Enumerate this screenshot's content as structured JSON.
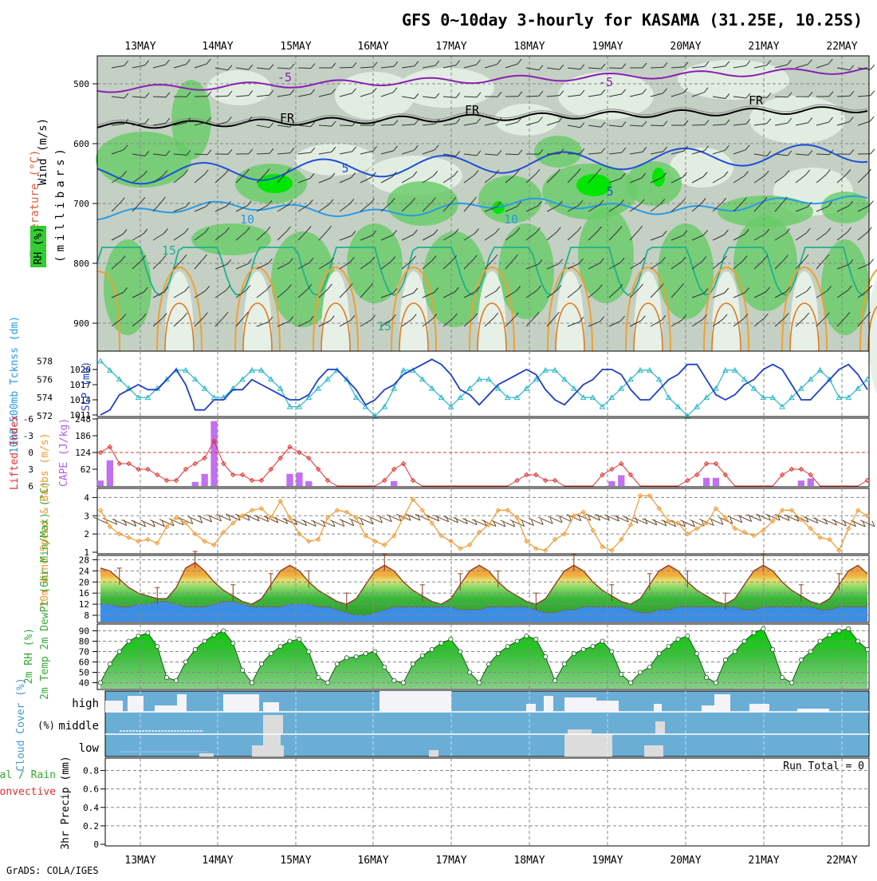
{
  "header": {
    "title": "GFS 0~10day 3-hourly for KASAMA (31.25E, 10.25S)",
    "footer": "GrADS: COLA/IGES"
  },
  "colors": {
    "rh_light": "#e6f0e6",
    "rh_mid": "#bdcbbd",
    "rh_gray": "#a9b7a9",
    "rh_green": "#66cc66",
    "rh_bright": "#00e600",
    "temp_purple": "#8a1fb5",
    "temp_black": "#000000",
    "temp_blue": "#1f4fd8",
    "temp_lightblue": "#2a9ae6",
    "temp_teal": "#1fb08a",
    "temp_orange": "#f0a030",
    "slp": "#1f3fc8",
    "thickness": "#2ab8c8",
    "li_line": "#e03030",
    "cape_bar": "#c070f0",
    "wind_line": "#f09a30",
    "barb": "#6a4a2a",
    "temp_fill": "#33aa33",
    "dew_fill": "#3388e6",
    "rh_fill": "#33bb33",
    "cloud_blue": "#6aaed6",
    "cloud_white": "#f4f4f8",
    "cloud_gray": "#dcdcdc",
    "grid": "#999999"
  },
  "dates": [
    "13MAY",
    "14MAY",
    "15MAY",
    "16MAY",
    "17MAY",
    "18MAY",
    "19MAY",
    "20MAY",
    "21MAY",
    "22MAY"
  ],
  "panels": {
    "upper": {
      "ylabel_wind": "Wind (m/s)",
      "ylabel_temp": "Temperature (°C)",
      "ylabel_rh": "RH (%)",
      "ylabel_mb": "(millibars)",
      "levels": [
        "500",
        "600",
        "700",
        "800",
        "900"
      ],
      "contour_labels": {
        "m5": "-5",
        "fr": "FR",
        "p5": "5",
        "p10": "10",
        "p15": "15"
      }
    },
    "slp": {
      "ylabel_thick": "1000-500mb Tcknss (dm)",
      "ylabel_slp": "SLP (mb)",
      "thick_ticks": [
        "578",
        "576",
        "574",
        "572"
      ],
      "slp_ticks": [
        "1020",
        "1017",
        "1014",
        "1011"
      ]
    },
    "cape": {
      "ylabel_li": "Lifted Index",
      "ylabel_cape": "CAPE (J/kg)",
      "li_ticks": [
        "-6",
        "-3",
        "0",
        "3",
        "6"
      ],
      "cape_ticks": [
        "248",
        "186",
        "124",
        "62"
      ]
    },
    "wind": {
      "ylabel": "10m Wind Speed & Barbs (m/s)",
      "ticks": [
        "4",
        "3",
        "2",
        "1"
      ]
    },
    "temp": {
      "ylabel": "2m Temp 2m DewPt (6hr Min/Max) (°C)",
      "ticks": [
        "28",
        "24",
        "20",
        "16",
        "12",
        "8"
      ]
    },
    "rh": {
      "ylabel": "2m RH (%)",
      "ticks": [
        "90",
        "80",
        "70",
        "60",
        "50",
        "40"
      ]
    },
    "cloud": {
      "ylabel": "Cloud Cover (%)",
      "rows": [
        "high",
        "middle",
        "low"
      ]
    },
    "precip": {
      "ylabel_total": "tal / Rain",
      "ylabel_conv": "Convective",
      "ylabel_precip": "3hr Precip (mm)",
      "run_total": "Run Total = 0",
      "ticks": [
        "0.8",
        "0.6",
        "0.4",
        "0.2",
        "0"
      ]
    }
  },
  "chart_data": [
    {
      "type": "line",
      "name": "SLP and 1000-500mb thickness",
      "time_index_unit": "3-hourly steps from 12 May 12Z",
      "series": [
        {
          "name": "SLP (mb)",
          "values": [
            1011,
            1012,
            1015,
            1016,
            1017,
            1016,
            1016,
            1018,
            1020,
            1017,
            1012,
            1012,
            1014,
            1014,
            1016,
            1016,
            1018,
            1017,
            1016,
            1015,
            1014,
            1014,
            1015,
            1018,
            1020,
            1020,
            1018,
            1016,
            1013,
            1014,
            1016,
            1017,
            1019,
            1020,
            1021,
            1022,
            1021,
            1019,
            1016,
            1015,
            1013,
            1015,
            1017,
            1018,
            1019,
            1020,
            1019,
            1016,
            1014,
            1013,
            1015,
            1017,
            1018,
            1020,
            1020,
            1019,
            1016,
            1014,
            1014,
            1016,
            1018,
            1019,
            1021,
            1021,
            1018,
            1015,
            1014,
            1015,
            1017,
            1018,
            1020,
            1021,
            1020,
            1017,
            1014,
            1014,
            1016,
            1018,
            1020,
            1021,
            1019,
            1016
          ]
        },
        {
          "name": "Thickness (dm)",
          "values": [
            578,
            577,
            576,
            575,
            574,
            574,
            575,
            576,
            577,
            577,
            576,
            575,
            574,
            574,
            575,
            576,
            577,
            577,
            576,
            575,
            573,
            573,
            574,
            575,
            576,
            577,
            576,
            574,
            573,
            572,
            573,
            575,
            577,
            577,
            576,
            575,
            574,
            573,
            574,
            575,
            576,
            576,
            575,
            574,
            574,
            575,
            576,
            577,
            577,
            576,
            575,
            574,
            574,
            573,
            574,
            575,
            576,
            577,
            577,
            576,
            574,
            573,
            572,
            573,
            574,
            575,
            577,
            577,
            576,
            575,
            574,
            574,
            573,
            574,
            575,
            576,
            577,
            576,
            574,
            574,
            575,
            576
          ]
        }
      ],
      "ylim_slp": [
        1011,
        1023
      ],
      "ylim_thick": [
        572,
        579
      ]
    },
    {
      "type": "bar",
      "name": "CAPE and Lifted Index",
      "series": [
        {
          "name": "CAPE (J/kg)",
          "values": [
            20,
            95,
            0,
            0,
            0,
            0,
            0,
            0,
            0,
            0,
            15,
            45,
            240,
            0,
            0,
            0,
            0,
            0,
            0,
            0,
            45,
            50,
            18,
            0,
            0,
            0,
            0,
            0,
            0,
            0,
            0,
            18,
            0,
            0,
            0,
            0,
            0,
            0,
            0,
            0,
            0,
            0,
            0,
            0,
            0,
            0,
            0,
            0,
            0,
            0,
            0,
            0,
            0,
            0,
            18,
            40,
            0,
            0,
            0,
            0,
            0,
            0,
            0,
            0,
            30,
            30,
            0,
            0,
            0,
            0,
            0,
            0,
            0,
            0,
            20,
            28,
            0,
            0,
            0,
            0,
            0,
            0
          ]
        },
        {
          "name": "Lifted Index",
          "values": [
            0,
            -1,
            2,
            2,
            3,
            3,
            4,
            5,
            5,
            3,
            2,
            1,
            -2,
            2,
            4,
            4,
            5,
            5,
            3,
            1,
            -1,
            0,
            1,
            3,
            5,
            6,
            6,
            6,
            6,
            6,
            5,
            3,
            2,
            5,
            6,
            6,
            6,
            6,
            6,
            6,
            6,
            6,
            6,
            6,
            5,
            4,
            4,
            5,
            5,
            6,
            6,
            6,
            6,
            4,
            3,
            2,
            4,
            6,
            6,
            6,
            6,
            6,
            5,
            4,
            2,
            2,
            4,
            6,
            6,
            6,
            6,
            6,
            4,
            3,
            3,
            4,
            6,
            6,
            6,
            6,
            6,
            5
          ]
        }
      ],
      "ylim_cape": [
        0,
        248
      ],
      "ylim_li": [
        -6,
        6
      ]
    },
    {
      "type": "line",
      "name": "10m wind speed",
      "series": [
        {
          "name": "Wind speed (m/s)",
          "values": [
            3.3,
            2.4,
            2.0,
            1.8,
            1.6,
            1.7,
            1.5,
            2.4,
            2.9,
            2.6,
            2.0,
            1.6,
            1.4,
            2.1,
            2.6,
            3.0,
            3.3,
            3.4,
            2.9,
            3.8,
            2.9,
            2.0,
            1.6,
            1.7,
            2.9,
            3.3,
            3.2,
            2.9,
            1.9,
            1.6,
            1.4,
            1.9,
            2.9,
            3.9,
            3.3,
            2.6,
            1.9,
            1.6,
            1.2,
            1.4,
            2.1,
            2.5,
            3.3,
            3.3,
            2.9,
            1.6,
            1.2,
            1.1,
            1.7,
            2.0,
            3.0,
            3.2,
            2.2,
            1.3,
            1.1,
            1.7,
            2.5,
            4.1,
            4.1,
            3.4,
            2.7,
            2.6,
            2.0,
            2.3,
            2.6,
            3.4,
            2.9,
            2.3,
            2.1,
            1.9,
            2.2,
            2.7,
            3.3,
            3.3,
            2.8,
            2.3,
            1.8,
            1.7,
            1.1,
            2.3,
            3.3,
            3.0
          ]
        }
      ],
      "ylim": [
        1,
        4.5
      ]
    },
    {
      "type": "area",
      "name": "2m temperature and dewpoint",
      "series": [
        {
          "name": "2m Temp (°C)",
          "values": [
            25,
            24,
            21,
            18,
            16,
            15,
            14,
            14,
            18,
            25,
            27,
            24,
            20,
            17,
            15,
            13,
            12,
            14,
            19,
            24,
            26,
            24,
            20,
            17,
            15,
            13,
            12,
            14,
            19,
            24,
            26,
            24,
            20,
            17,
            15,
            13,
            12,
            14,
            19,
            24,
            26,
            24,
            20,
            17,
            15,
            13,
            12,
            14,
            19,
            24,
            26,
            24,
            20,
            17,
            15,
            13,
            12,
            14,
            19,
            24,
            26,
            24,
            20,
            17,
            15,
            13,
            12,
            14,
            19,
            24,
            26,
            24,
            20,
            17,
            15,
            13,
            12,
            14,
            19,
            24,
            26,
            23
          ]
        },
        {
          "name": "2m DewPt (°C)",
          "values": [
            12,
            12,
            11,
            11,
            12,
            12,
            13,
            13,
            12,
            11,
            11,
            11,
            12,
            13,
            13,
            12,
            11,
            11,
            11,
            11,
            12,
            12,
            12,
            11,
            11,
            10,
            9,
            8,
            8,
            9,
            10,
            11,
            11,
            11,
            11,
            11,
            11,
            11,
            10,
            10,
            10,
            11,
            11,
            11,
            11,
            11,
            10,
            9,
            9,
            10,
            10,
            11,
            11,
            11,
            11,
            11,
            10,
            9,
            9,
            10,
            10,
            11,
            11,
            11,
            11,
            11,
            11,
            11,
            10,
            10,
            11,
            11,
            11,
            11,
            11,
            11,
            10,
            10,
            11,
            11,
            11,
            11
          ]
        }
      ],
      "ylim": [
        6,
        29
      ]
    },
    {
      "type": "area",
      "name": "2m relative humidity",
      "series": [
        {
          "name": "2m RH (%)",
          "values": [
            40,
            58,
            70,
            80,
            85,
            88,
            75,
            45,
            42,
            60,
            72,
            80,
            86,
            90,
            78,
            52,
            40,
            58,
            68,
            75,
            80,
            82,
            70,
            45,
            40,
            58,
            64,
            65,
            68,
            70,
            55,
            42,
            40,
            58,
            66,
            72,
            78,
            82,
            70,
            50,
            40,
            58,
            68,
            75,
            80,
            85,
            82,
            65,
            42,
            58,
            68,
            72,
            75,
            80,
            70,
            48,
            40,
            50,
            55,
            68,
            75,
            82,
            85,
            68,
            45,
            40,
            62,
            70,
            80,
            88,
            92,
            72,
            45,
            40,
            62,
            70,
            80,
            86,
            90,
            92,
            80,
            72
          ]
        }
      ],
      "ylim": [
        35,
        95
      ]
    },
    {
      "type": "table",
      "name": "Cloud cover (qualitative)",
      "rows": [
        "high",
        "middle",
        "low"
      ]
    },
    {
      "type": "bar",
      "name": "3hr precipitation",
      "series": [
        {
          "name": "3hr Precip (mm)",
          "values": []
        }
      ],
      "ylim": [
        0,
        0.9
      ],
      "run_total": 0
    }
  ]
}
